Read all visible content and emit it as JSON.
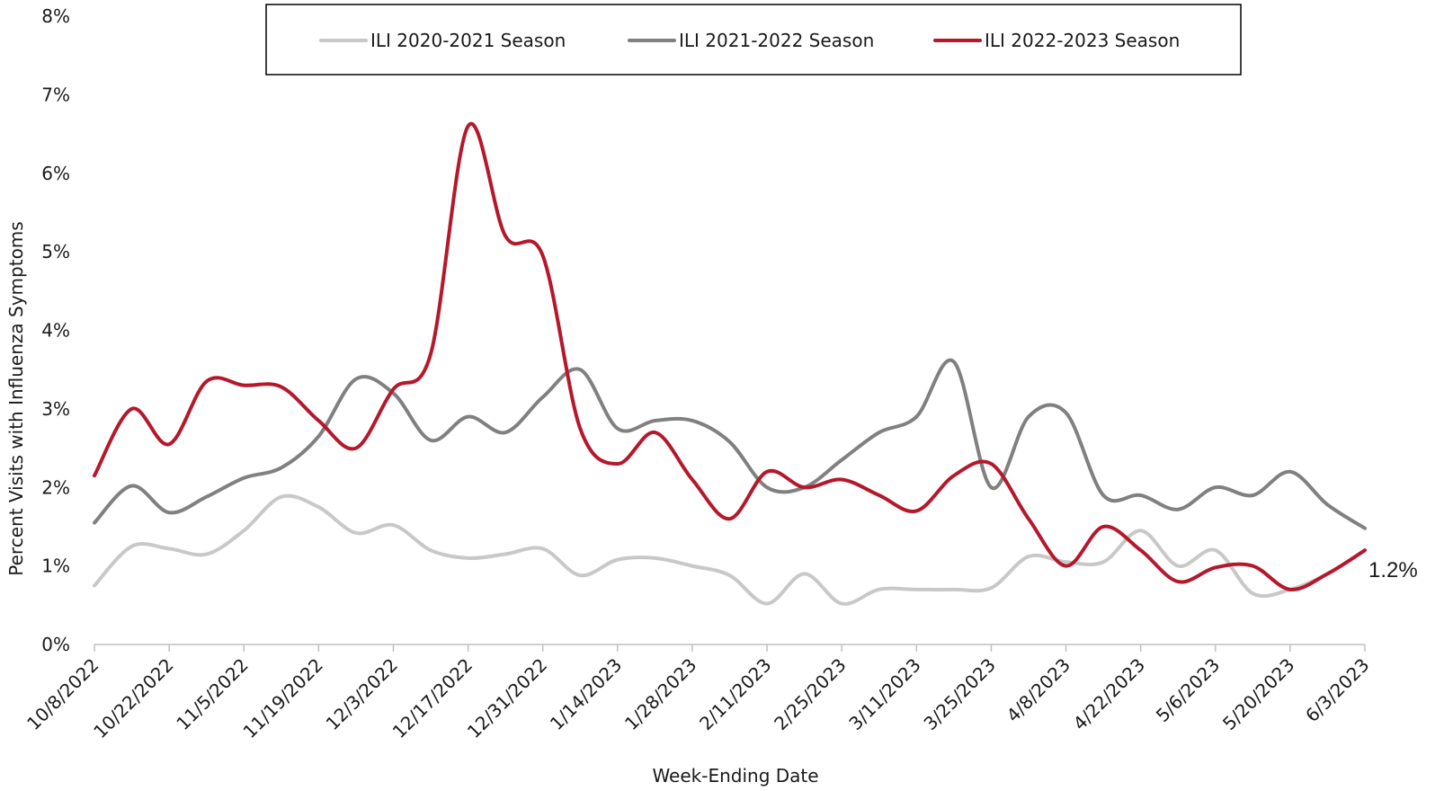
{
  "chart_data": {
    "type": "line",
    "title": "",
    "xlabel": "Week-Ending Date",
    "ylabel": "Percent Visits with Influenza Symptoms",
    "ylim": [
      0,
      8
    ],
    "y_ticks": [
      "0%",
      "1%",
      "2%",
      "3%",
      "4%",
      "5%",
      "6%",
      "7%",
      "8%"
    ],
    "x_tick_labels": [
      "10/8/2022",
      "10/22/2022",
      "11/5/2022",
      "11/19/2022",
      "12/3/2022",
      "12/17/2022",
      "12/31/2022",
      "1/14/2023",
      "1/28/2023",
      "2/11/2023",
      "2/25/2023",
      "3/11/2023",
      "3/25/2023",
      "4/8/2023",
      "4/22/2023",
      "5/6/2023",
      "5/20/2023",
      "6/3/2023"
    ],
    "x": [
      "10/8/2022",
      "10/15/2022",
      "10/22/2022",
      "10/29/2022",
      "11/5/2022",
      "11/12/2022",
      "11/19/2022",
      "11/26/2022",
      "12/3/2022",
      "12/10/2022",
      "12/17/2022",
      "12/24/2022",
      "12/31/2022",
      "1/7/2023",
      "1/14/2023",
      "1/21/2023",
      "1/28/2023",
      "2/4/2023",
      "2/11/2023",
      "2/18/2023",
      "2/25/2023",
      "3/4/2023",
      "3/11/2023",
      "3/18/2023",
      "3/25/2023",
      "4/1/2023",
      "4/8/2023",
      "4/15/2023",
      "4/22/2023",
      "4/29/2023",
      "5/6/2023",
      "5/13/2023",
      "5/20/2023",
      "5/27/2023",
      "6/3/2023"
    ],
    "series": [
      {
        "name": "ILI 2020-2021 Season",
        "color": "#c8c8c8",
        "values": [
          0.75,
          1.25,
          1.22,
          1.15,
          1.45,
          1.88,
          1.75,
          1.42,
          1.52,
          1.2,
          1.1,
          1.15,
          1.22,
          0.88,
          1.08,
          1.1,
          1.0,
          0.88,
          0.52,
          0.9,
          0.52,
          0.7,
          0.7,
          0.7,
          0.72,
          1.12,
          1.05,
          1.05,
          1.45,
          1.0,
          1.2,
          0.65,
          0.7,
          0.9,
          1.2
        ]
      },
      {
        "name": "ILI 2021-2022 Season",
        "color": "#808080",
        "values": [
          1.55,
          2.02,
          1.68,
          1.88,
          2.12,
          2.25,
          2.65,
          3.38,
          3.2,
          2.6,
          2.9,
          2.7,
          3.15,
          3.5,
          2.75,
          2.85,
          2.85,
          2.58,
          2.0,
          2.0,
          2.35,
          2.7,
          2.9,
          3.6,
          2.0,
          2.9,
          2.95,
          1.9,
          1.9,
          1.72,
          2.0,
          1.9,
          2.2,
          1.78,
          1.48
        ]
      },
      {
        "name": "ILI 2022-2023 Season",
        "color": "#b5182b",
        "values": [
          2.15,
          3.0,
          2.55,
          3.35,
          3.3,
          3.28,
          2.85,
          2.5,
          3.25,
          3.7,
          6.6,
          5.2,
          4.95,
          2.75,
          2.3,
          2.7,
          2.1,
          1.6,
          2.2,
          2.0,
          2.1,
          1.9,
          1.7,
          2.15,
          2.3,
          1.6,
          1.0,
          1.5,
          1.2,
          0.8,
          0.98,
          1.0,
          0.7,
          0.9,
          1.2
        ]
      }
    ],
    "end_label": "1.2%",
    "legend_position": "top-center",
    "grid": false
  }
}
